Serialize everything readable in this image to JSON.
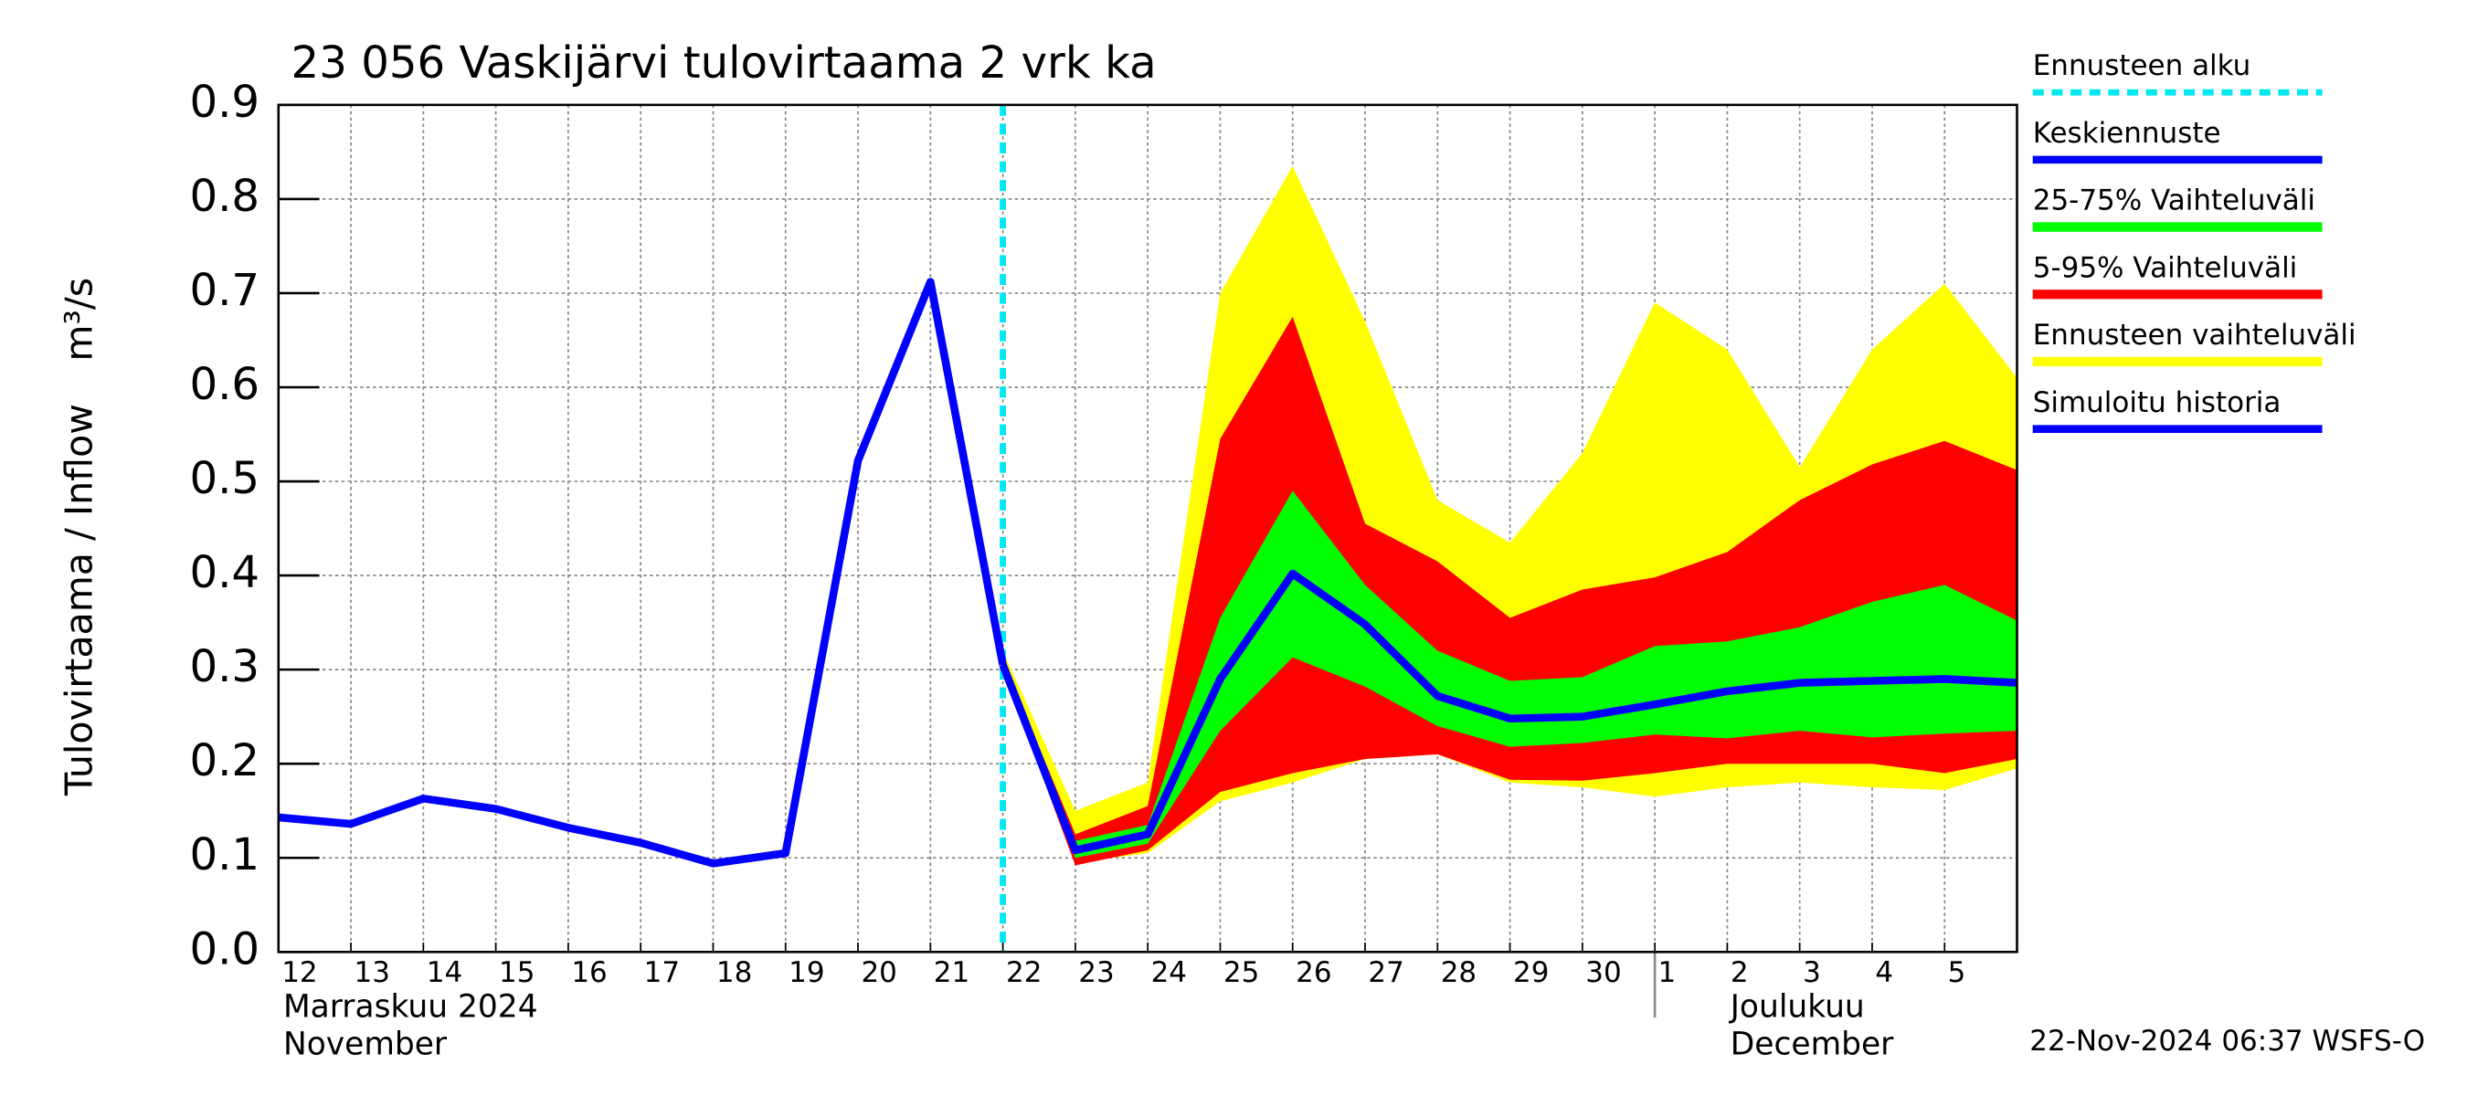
{
  "chart_data": {
    "type": "line",
    "title": "23 056 Vaskijärvi tulovirtaama 2 vrk ka",
    "y_label": "Tulovirtaama / Inflow",
    "y_unit": "m³/s",
    "xlim": [
      "2024-11-12",
      "2024-12-06"
    ],
    "ylim": [
      0,
      0.9
    ],
    "yticks": [
      {
        "value": 0,
        "label": "0.0"
      },
      0.1,
      0.2,
      0.3,
      0.4,
      0.5,
      0.6,
      0.7,
      0.8,
      0.9
    ],
    "xticks": [
      {
        "value": "2024-11-12",
        "label": "12"
      },
      {
        "value": "2024-11-13",
        "label": "13"
      },
      {
        "value": "2024-11-14",
        "label": "14"
      },
      {
        "value": "2024-11-15",
        "label": "15"
      },
      {
        "value": "2024-11-16",
        "label": "16"
      },
      {
        "value": "2024-11-17",
        "label": "17"
      },
      {
        "value": "2024-11-18",
        "label": "18"
      },
      {
        "value": "2024-11-19",
        "label": "19"
      },
      {
        "value": "2024-11-20",
        "label": "20"
      },
      {
        "value": "2024-11-21",
        "label": "21"
      },
      {
        "value": "2024-11-22",
        "label": "22"
      },
      {
        "value": "2024-11-23",
        "label": "23"
      },
      {
        "value": "2024-11-24",
        "label": "24"
      },
      {
        "value": "2024-11-25",
        "label": "25"
      },
      {
        "value": "2024-11-26",
        "label": "26"
      },
      {
        "value": "2024-11-27",
        "label": "27"
      },
      {
        "value": "2024-11-28",
        "label": "28"
      },
      {
        "value": "2024-11-29",
        "label": "29"
      },
      {
        "value": "2024-11-30",
        "label": "30"
      },
      {
        "value": "2024-12-01",
        "label": "1"
      },
      {
        "value": "2024-12-02",
        "label": "2"
      },
      {
        "value": "2024-12-03",
        "label": "3"
      },
      {
        "value": "2024-12-04",
        "label": "4"
      },
      {
        "value": "2024-12-05",
        "label": "5"
      }
    ],
    "month_labels": [
      {
        "x": "2024-11-12",
        "fi": "Marraskuu 2024",
        "en": "November"
      },
      {
        "x": "2024-12-01",
        "fi": "Joulukuu",
        "en": "December"
      }
    ],
    "grid": true,
    "forecast_start": {
      "name": "Ennusteen alku",
      "color": "#00e8f0",
      "x": "2024-11-22"
    },
    "bands": [
      {
        "name": "Ennusteen vaihteluväli",
        "color": "#ffff00",
        "x": [
          "2024-11-22",
          "2024-11-23",
          "2024-11-24",
          "2024-11-25",
          "2024-11-26",
          "2024-11-27",
          "2024-11-28",
          "2024-11-29",
          "2024-11-30",
          "2024-12-01",
          "2024-12-02",
          "2024-12-03",
          "2024-12-04",
          "2024-12-05",
          "2024-12-06"
        ],
        "upper": [
          0.32,
          0.15,
          0.18,
          0.7,
          0.835,
          0.67,
          0.48,
          0.435,
          0.53,
          0.69,
          0.64,
          0.515,
          0.64,
          0.71,
          0.61
        ],
        "lower": [
          0.3,
          0.095,
          0.105,
          0.16,
          0.18,
          0.205,
          0.21,
          0.18,
          0.175,
          0.165,
          0.175,
          0.18,
          0.175,
          0.172,
          0.195
        ]
      },
      {
        "name": "5-95% Vaihteluväli",
        "color": "#ff0000",
        "x": [
          "2024-11-22",
          "2024-11-23",
          "2024-11-24",
          "2024-11-25",
          "2024-11-26",
          "2024-11-27",
          "2024-11-28",
          "2024-11-29",
          "2024-11-30",
          "2024-12-01",
          "2024-12-02",
          "2024-12-03",
          "2024-12-04",
          "2024-12-05",
          "2024-12-06"
        ],
        "upper": [
          0.31,
          0.125,
          0.155,
          0.545,
          0.675,
          0.455,
          0.415,
          0.355,
          0.385,
          0.398,
          0.425,
          0.48,
          0.518,
          0.543,
          0.512
        ],
        "lower": [
          0.3,
          0.092,
          0.108,
          0.17,
          0.19,
          0.205,
          0.21,
          0.183,
          0.182,
          0.19,
          0.2,
          0.2,
          0.2,
          0.19,
          0.205
        ]
      },
      {
        "name": "25-75% Vaihteluväli",
        "color": "#00ff00",
        "x": [
          "2024-11-22",
          "2024-11-23",
          "2024-11-24",
          "2024-11-25",
          "2024-11-26",
          "2024-11-27",
          "2024-11-28",
          "2024-11-29",
          "2024-11-30",
          "2024-12-01",
          "2024-12-02",
          "2024-12-03",
          "2024-12-04",
          "2024-12-05",
          "2024-12-06"
        ],
        "upper": [
          0.308,
          0.118,
          0.135,
          0.355,
          0.49,
          0.39,
          0.32,
          0.288,
          0.292,
          0.325,
          0.33,
          0.345,
          0.372,
          0.39,
          0.352
        ],
        "lower": [
          0.302,
          0.1,
          0.115,
          0.235,
          0.313,
          0.282,
          0.24,
          0.218,
          0.222,
          0.231,
          0.227,
          0.235,
          0.228,
          0.232,
          0.235
        ]
      }
    ],
    "series": [
      {
        "name": "Keskiennuste",
        "color": "#0000ff",
        "x": [
          "2024-11-22",
          "2024-11-23",
          "2024-11-24",
          "2024-11-25",
          "2024-11-26",
          "2024-11-27",
          "2024-11-28",
          "2024-11-29",
          "2024-11-30",
          "2024-12-01",
          "2024-12-02",
          "2024-12-03",
          "2024-12-04",
          "2024-12-05",
          "2024-12-06"
        ],
        "values": [
          0.305,
          0.108,
          0.125,
          0.29,
          0.402,
          0.348,
          0.272,
          0.248,
          0.25,
          0.263,
          0.277,
          0.286,
          0.288,
          0.29,
          0.286
        ]
      },
      {
        "name": "Simuloitu historia",
        "color": "#0000ff",
        "x": [
          "2024-11-12",
          "2024-11-13",
          "2024-11-14",
          "2024-11-15",
          "2024-11-16",
          "2024-11-17",
          "2024-11-18",
          "2024-11-19",
          "2024-11-20",
          "2024-11-21",
          "2024-11-22"
        ],
        "values": [
          0.143,
          0.136,
          0.163,
          0.152,
          0.132,
          0.116,
          0.094,
          0.105,
          0.522,
          0.712,
          0.305
        ]
      }
    ],
    "timestamp": "22-Nov-2024 06:37 WSFS-O"
  }
}
